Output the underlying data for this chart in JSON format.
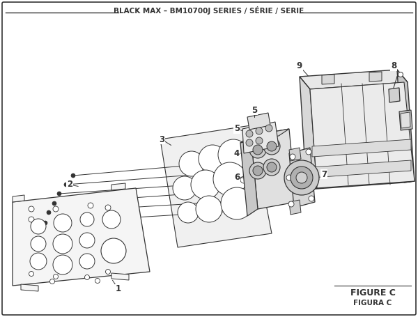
{
  "title": "BLACK MAX – BM10700J SERIES / SÉRIE / SERIE",
  "figure_label": "FIGURE C",
  "figura_label": "FIGURA C",
  "bg_color": "#ffffff",
  "line_color": "#333333",
  "fill_light": "#f2f2f2",
  "fill_mid": "#e0e0e0",
  "fill_dark": "#c8c8c8",
  "fill_darker": "#aaaaaa"
}
